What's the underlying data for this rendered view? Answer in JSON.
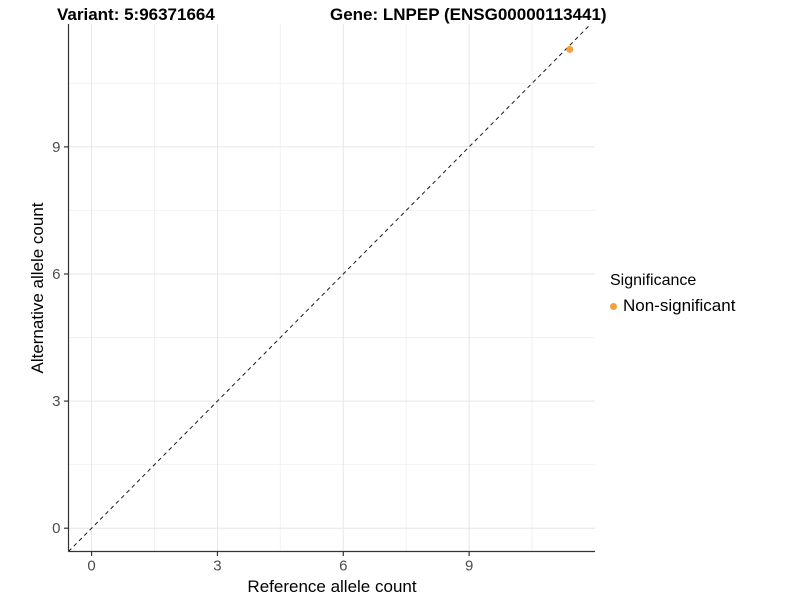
{
  "header": {
    "title_variant": "Variant: 5:96371664",
    "title_gene": "Gene: LNPEP (ENSG00000113441)"
  },
  "chart_data": {
    "type": "scatter",
    "titles": [
      "Variant: 5:96371664",
      "Gene: LNPEP (ENSG00000113441)"
    ],
    "xlabel": "Reference allele count",
    "ylabel": "Alternative allele count",
    "xlim": [
      -0.55,
      12.0
    ],
    "ylim": [
      -0.55,
      11.9
    ],
    "xticks": [
      0,
      3,
      6,
      9
    ],
    "yticks": [
      0,
      3,
      6,
      9
    ],
    "x_minor": [
      1.5,
      4.5,
      7.5,
      10.5
    ],
    "y_minor": [
      1.5,
      4.5,
      7.5,
      10.5
    ],
    "grid": true,
    "identity_line": {
      "style": "dashed",
      "from": -0.55,
      "to": 11.9
    },
    "series": [
      {
        "name": "Non-significant",
        "color": "#F6A03A",
        "points": [
          [
            11.4,
            11.3
          ]
        ]
      }
    ],
    "legend": {
      "title": "Significance",
      "position": "right",
      "entries": [
        {
          "label": "Non-significant",
          "color": "#F6A03A"
        }
      ]
    },
    "colors": {
      "background": "#FFFFFF",
      "grid_major": "#E6E6E6",
      "grid_minor": "#F2F2F2",
      "axis": "#333333",
      "tick_label": "#4D4D4D",
      "identity_line": "#1A1A1A"
    }
  }
}
